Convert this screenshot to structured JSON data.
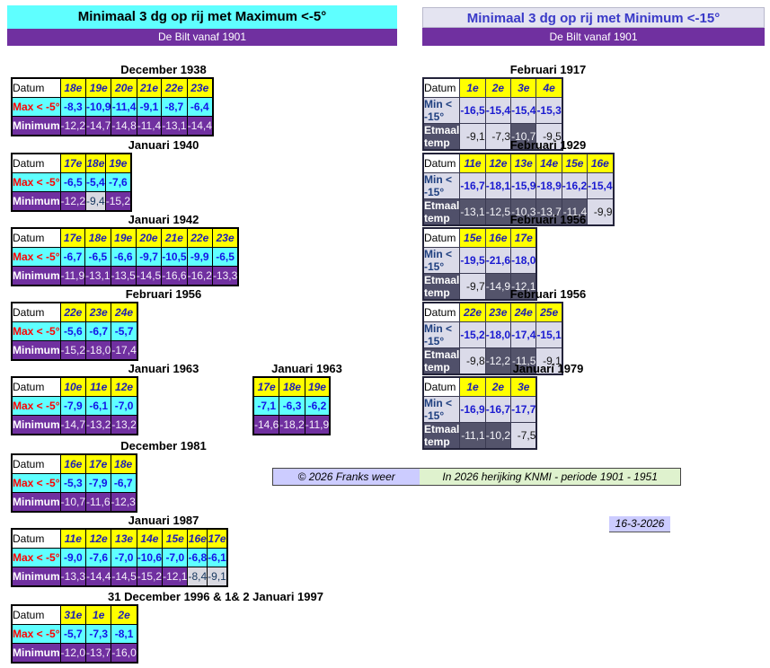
{
  "header_left": {
    "title": "Minimaal 3 dg op rij met Maximum <-5°",
    "subtitle": "De Bilt vanaf 1901"
  },
  "header_right": {
    "title": "Minimaal 3 dg op rij met Minimum <-15°",
    "subtitle": "De Bilt vanaf 1901"
  },
  "row_labels_left": {
    "datum": "Datum",
    "max": "Max < -5°",
    "min": "Minimum"
  },
  "row_labels_right": {
    "datum": "Datum",
    "min": "Min < -15°",
    "etmaal": "Etmaal temp"
  },
  "left_tables": [
    {
      "title": "December 1938",
      "dates": [
        "18e",
        "19e",
        "20e",
        "21e",
        "22e",
        "23e"
      ],
      "max": [
        "-8,3",
        "-10,9",
        "-11,4",
        "-9,1",
        "-8,7",
        "-6,4"
      ],
      "min": [
        "-12,2",
        "-14,7",
        "-14,8",
        "-11,4",
        "-13,1",
        "-14,4"
      ]
    },
    {
      "title": "Januari 1940",
      "dates": [
        "17e",
        "18e",
        "19e"
      ],
      "max": [
        "-6,5",
        "-5,4",
        "-7,6"
      ],
      "min": [
        "-12,2",
        "-9,4",
        "-15,2"
      ]
    },
    {
      "title": "Januari 1942",
      "dates": [
        "17e",
        "18e",
        "19e",
        "20e",
        "21e",
        "22e",
        "23e"
      ],
      "max": [
        "-6,7",
        "-6,5",
        "-6,6",
        "-9,7",
        "-10,5",
        "-9,9",
        "-6,5"
      ],
      "min": [
        "-11,9",
        "-13,1",
        "-13,5",
        "-14,5",
        "-16,6",
        "-16,2",
        "-13,3"
      ]
    },
    {
      "title": "Februari 1956",
      "dates": [
        "22e",
        "23e",
        "24e"
      ],
      "max": [
        "-5,6",
        "-6,7",
        "-5,7"
      ],
      "min": [
        "-15,2",
        "-18,0",
        "-17,4"
      ]
    },
    {
      "title": "Januari 1963",
      "dates": [
        "10e",
        "11e",
        "12e"
      ],
      "max": [
        "-7,9",
        "-6,1",
        "-7,0"
      ],
      "min": [
        "-14,7",
        "-13,2",
        "-13,2"
      ]
    },
    {
      "title": "Januari 1963",
      "dates": [
        "17e",
        "18e",
        "19e"
      ],
      "max": [
        "-7,1",
        "-6,3",
        "-6,2"
      ],
      "min": [
        "-14,6",
        "-18,2",
        "-11,9"
      ],
      "no_labels": true
    },
    {
      "title": "December 1981",
      "dates": [
        "16e",
        "17e",
        "18e"
      ],
      "max": [
        "-5,3",
        "-7,9",
        "-6,7"
      ],
      "min": [
        "-10,7",
        "-11,6",
        "-12,3"
      ]
    },
    {
      "title": "Januari 1987",
      "dates": [
        "11e",
        "12e",
        "13e",
        "14e",
        "15e",
        "16e",
        "17e"
      ],
      "max": [
        "-9,0",
        "-7,6",
        "-7,0",
        "-10,6",
        "-7,0",
        "-6,8",
        "-6,1"
      ],
      "min": [
        "-13,3",
        "-14,4",
        "-14,5",
        "-15,2",
        "-12,1",
        "-8,4",
        "-9,1"
      ]
    },
    {
      "title": "31 December 1996  & 1& 2 Januari  1997",
      "dates": [
        "31e",
        "1e",
        "2e"
      ],
      "max": [
        "-5,7",
        "-7,3",
        "-8,1"
      ],
      "min": [
        "-12,0",
        "-13,7",
        "-16,0"
      ]
    }
  ],
  "right_tables": [
    {
      "title": "Februari 1917",
      "dates": [
        "1e",
        "2e",
        "3e",
        "4e"
      ],
      "min": [
        "-16,5",
        "-15,4",
        "-15,4",
        "-15,3"
      ],
      "etmaal": [
        "-9,1",
        "-7,3",
        "-10,7",
        "-9,5"
      ]
    },
    {
      "title": "Februari 1929",
      "dates": [
        "11e",
        "12e",
        "13e",
        "14e",
        "15e",
        "16e"
      ],
      "min": [
        "-16,7",
        "-18,1",
        "-15,9",
        "-18,9",
        "-16,2",
        "-15,4"
      ],
      "etmaal": [
        "-13,1",
        "-12,5",
        "-10,3",
        "-13,7",
        "-11,4",
        "-9,9"
      ]
    },
    {
      "title": "Februari 1956",
      "dates": [
        "15e",
        "16e",
        "17e"
      ],
      "min": [
        "-19,5",
        "-21,6",
        "-18,0"
      ],
      "etmaal": [
        "-9,7",
        "-14,9",
        "-12,1"
      ]
    },
    {
      "title": "Februari 1956",
      "dates": [
        "22e",
        "23e",
        "24e",
        "25e"
      ],
      "min": [
        "-15,2",
        "-18,0",
        "-17,4",
        "-15,1"
      ],
      "etmaal": [
        "-9,8",
        "-12,2",
        "-11,5",
        "-9,1"
      ]
    },
    {
      "title": "Januari 1979",
      "dates": [
        "1e",
        "2e",
        "3e"
      ],
      "min": [
        "-16,9",
        "-16,7",
        "-17,7"
      ],
      "etmaal": [
        "-11,1",
        "-10,2",
        "-7,5"
      ]
    }
  ],
  "footer": {
    "copyright": "© 2026 Franks weer",
    "note": "In 2026 herijking KNMI - periode 1901 - 1951",
    "date": "16-3-2026"
  },
  "colors": {
    "cyan": "#5FFFFF",
    "purple": "#7030A0",
    "yellow": "#FFFF00",
    "lavender": "#CCCCFF",
    "light_lavender": "#DBDBE9",
    "slate": "#54546B",
    "green_note": "#DFF2CE",
    "blue_value": "#1414E6",
    "red_label": "#FF0000"
  }
}
